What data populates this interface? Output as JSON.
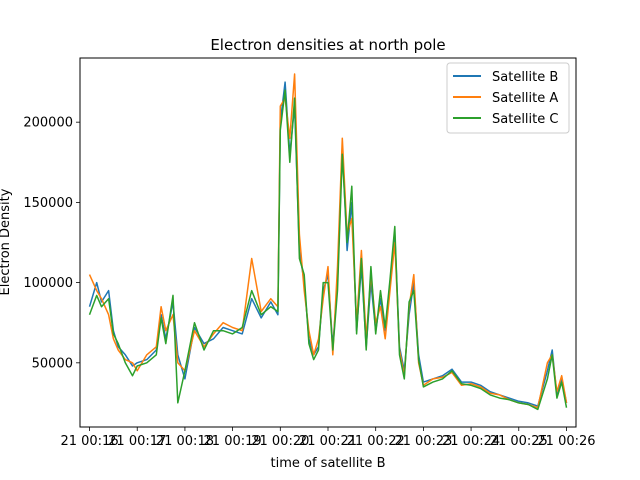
{
  "chart_data": {
    "type": "line",
    "title": "Electron densities at north pole",
    "xlabel": "time of satellite B",
    "ylabel": "Electron Density",
    "x_tick_labels": [
      "21 00:16",
      "21 00:17",
      "21 00:18",
      "21 00:19",
      "21 00:20",
      "21 00:21",
      "21 00:22",
      "21 00:23",
      "21 00:24",
      "21 00:25",
      "21 00:26"
    ],
    "y_ticks": [
      50000,
      100000,
      150000,
      200000
    ],
    "y_tick_labels": [
      "50000",
      "100000",
      "150000",
      "200000"
    ],
    "x_unit": "minutes past 21 00:16",
    "xlim": [
      -0.2,
      10.2
    ],
    "ylim": [
      10000,
      240000
    ],
    "legend": {
      "placement": "top-right"
    },
    "grid": false,
    "series": [
      {
        "name": "Satellite B",
        "color": "#1f77b4",
        "x": [
          0,
          0.15,
          0.25,
          0.4,
          0.5,
          0.6,
          0.75,
          0.9,
          1.0,
          1.2,
          1.4,
          1.5,
          1.6,
          1.75,
          1.85,
          2.0,
          2.2,
          2.4,
          2.6,
          2.8,
          3.0,
          3.2,
          3.4,
          3.6,
          3.8,
          3.95,
          4.0,
          4.1,
          4.2,
          4.3,
          4.4,
          4.5,
          4.6,
          4.7,
          4.8,
          4.9,
          5.0,
          5.1,
          5.2,
          5.3,
          5.4,
          5.5,
          5.6,
          5.7,
          5.8,
          5.9,
          6.0,
          6.1,
          6.2,
          6.3,
          6.4,
          6.5,
          6.6,
          6.7,
          6.8,
          6.9,
          7.0,
          7.2,
          7.4,
          7.6,
          7.8,
          8.0,
          8.2,
          8.4,
          8.6,
          8.8,
          9.0,
          9.2,
          9.4,
          9.6,
          9.7,
          9.8,
          9.9,
          10.0
        ],
        "y": [
          85000,
          100000,
          88000,
          95000,
          70000,
          60000,
          55000,
          48000,
          50000,
          52000,
          58000,
          80000,
          65000,
          88000,
          55000,
          40000,
          72000,
          62000,
          65000,
          72000,
          70000,
          68000,
          90000,
          78000,
          88000,
          80000,
          200000,
          225000,
          180000,
          210000,
          120000,
          100000,
          65000,
          55000,
          60000,
          95000,
          105000,
          60000,
          100000,
          185000,
          120000,
          150000,
          70000,
          110000,
          60000,
          100000,
          70000,
          90000,
          70000,
          100000,
          130000,
          60000,
          45000,
          80000,
          100000,
          55000,
          38000,
          40000,
          42000,
          46000,
          38000,
          38000,
          36000,
          32000,
          30000,
          28000,
          26000,
          25000,
          23000,
          45000,
          58000,
          30000,
          40000,
          25000
        ]
      },
      {
        "name": "Satellite A",
        "color": "#ff7f0e",
        "x": [
          0,
          0.15,
          0.25,
          0.4,
          0.5,
          0.6,
          0.75,
          0.9,
          1.0,
          1.2,
          1.4,
          1.5,
          1.6,
          1.75,
          1.85,
          2.0,
          2.2,
          2.4,
          2.6,
          2.8,
          3.0,
          3.2,
          3.4,
          3.6,
          3.8,
          3.95,
          4.0,
          4.1,
          4.2,
          4.3,
          4.4,
          4.5,
          4.6,
          4.7,
          4.8,
          4.9,
          5.0,
          5.1,
          5.2,
          5.3,
          5.4,
          5.5,
          5.6,
          5.7,
          5.8,
          5.9,
          6.0,
          6.1,
          6.2,
          6.3,
          6.4,
          6.5,
          6.6,
          6.7,
          6.8,
          6.9,
          7.0,
          7.2,
          7.4,
          7.6,
          7.8,
          8.0,
          8.2,
          8.4,
          8.6,
          8.8,
          9.0,
          9.2,
          9.4,
          9.6,
          9.7,
          9.8,
          9.9,
          10.0
        ],
        "y": [
          105000,
          95000,
          90000,
          80000,
          65000,
          58000,
          52000,
          50000,
          45000,
          55000,
          60000,
          85000,
          70000,
          80000,
          50000,
          45000,
          70000,
          60000,
          68000,
          75000,
          72000,
          70000,
          115000,
          82000,
          90000,
          85000,
          210000,
          215000,
          190000,
          230000,
          130000,
          95000,
          70000,
          55000,
          65000,
          90000,
          110000,
          55000,
          110000,
          190000,
          130000,
          140000,
          75000,
          120000,
          65000,
          105000,
          75000,
          85000,
          65000,
          95000,
          125000,
          58000,
          42000,
          85000,
          105000,
          50000,
          36000,
          40000,
          41000,
          44000,
          36000,
          37000,
          35000,
          31000,
          30000,
          27000,
          25000,
          24000,
          22000,
          50000,
          55000,
          32000,
          42000,
          25000
        ]
      },
      {
        "name": "Satellite C",
        "color": "#2ca02c",
        "x": [
          0,
          0.15,
          0.25,
          0.4,
          0.5,
          0.6,
          0.75,
          0.9,
          1.0,
          1.2,
          1.4,
          1.5,
          1.6,
          1.75,
          1.85,
          2.0,
          2.2,
          2.4,
          2.6,
          2.8,
          3.0,
          3.2,
          3.4,
          3.6,
          3.8,
          3.95,
          4.0,
          4.1,
          4.2,
          4.3,
          4.4,
          4.5,
          4.6,
          4.7,
          4.8,
          4.9,
          5.0,
          5.1,
          5.2,
          5.3,
          5.4,
          5.5,
          5.6,
          5.7,
          5.8,
          5.9,
          6.0,
          6.1,
          6.2,
          6.3,
          6.4,
          6.5,
          6.6,
          6.7,
          6.8,
          6.9,
          7.0,
          7.2,
          7.4,
          7.6,
          7.8,
          8.0,
          8.2,
          8.4,
          8.6,
          8.8,
          9.0,
          9.2,
          9.4,
          9.6,
          9.7,
          9.8,
          9.9,
          10.0
        ],
        "y": [
          80000,
          92000,
          85000,
          90000,
          68000,
          62000,
          50000,
          42000,
          48000,
          50000,
          55000,
          78000,
          62000,
          92000,
          25000,
          45000,
          75000,
          58000,
          70000,
          70000,
          68000,
          72000,
          95000,
          80000,
          85000,
          82000,
          195000,
          220000,
          175000,
          215000,
          115000,
          105000,
          62000,
          52000,
          58000,
          100000,
          100000,
          58000,
          95000,
          180000,
          125000,
          160000,
          68000,
          115000,
          58000,
          110000,
          68000,
          95000,
          72000,
          102000,
          135000,
          55000,
          40000,
          88000,
          95000,
          52000,
          35000,
          38000,
          40000,
          45000,
          37000,
          36000,
          34000,
          30000,
          28000,
          27000,
          25000,
          24000,
          21000,
          40000,
          55000,
          28000,
          38000,
          22000
        ]
      }
    ]
  }
}
